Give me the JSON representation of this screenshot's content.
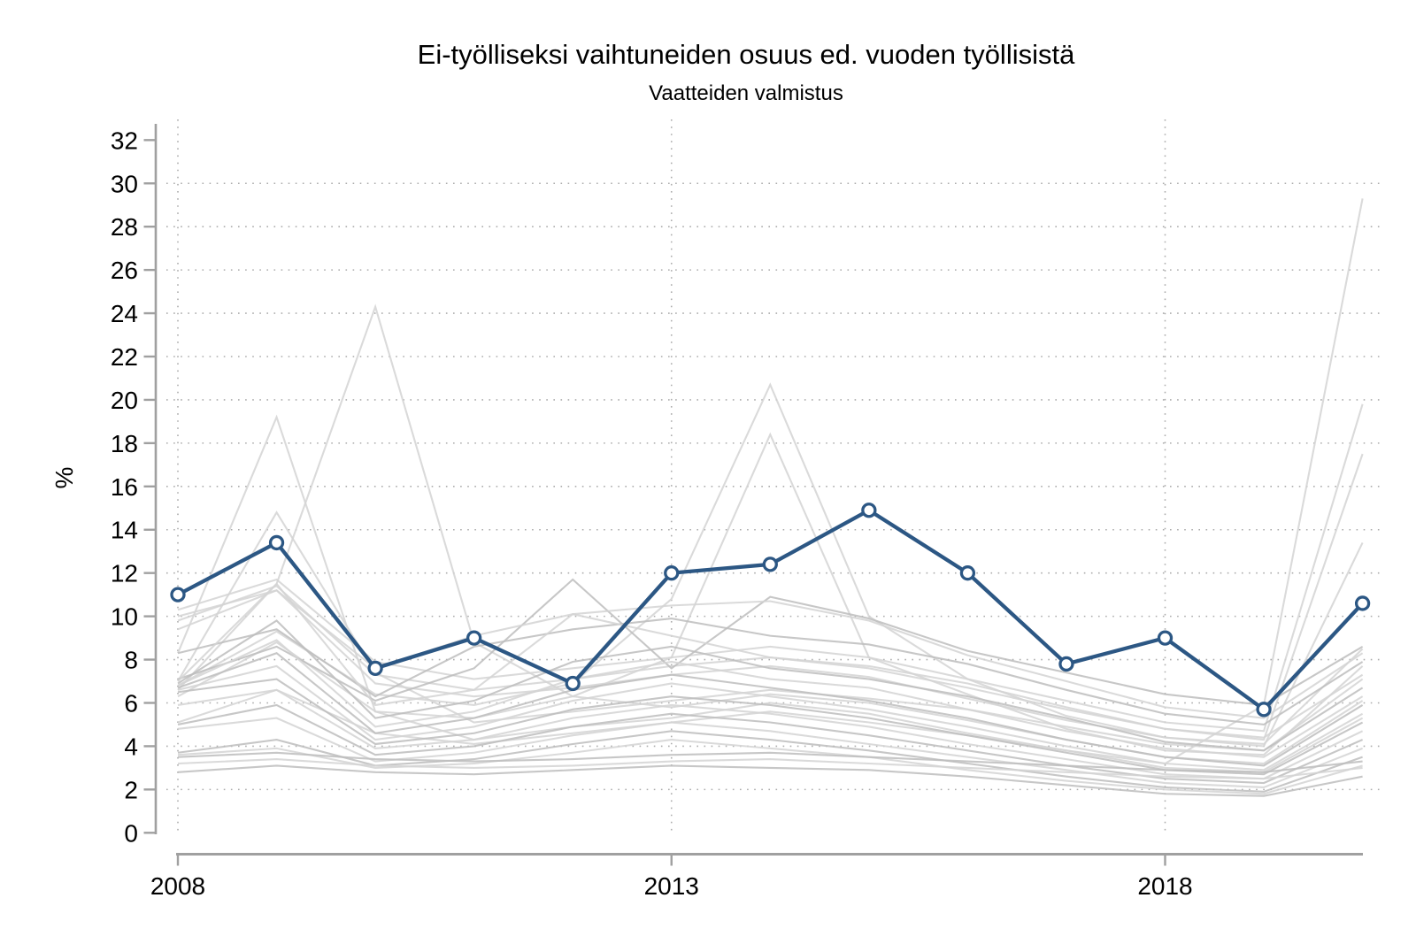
{
  "chart": {
    "title": "Ei-työlliseksi vaihtuneiden osuus ed. vuoden työllisistä",
    "subtitle": "Vaatteiden valmistus",
    "ylabel": "%"
  },
  "chart_data": {
    "type": "line",
    "title": "Ei-työlliseksi vaihtuneiden osuus ed. vuoden työllisistä",
    "subtitle": "Vaatteiden valmistus",
    "xlabel": "",
    "ylabel": "%",
    "ylim": [
      0,
      32
    ],
    "xlim": [
      2008,
      2020
    ],
    "grid": "dotted horizontal lines at 2..30, dotted vertical lines at labeled years",
    "legend_position": "none",
    "years": [
      2008,
      2009,
      2010,
      2011,
      2012,
      2013,
      2014,
      2015,
      2016,
      2017,
      2018,
      2019,
      2020
    ],
    "y_ticks": [
      0,
      2,
      4,
      6,
      8,
      10,
      12,
      14,
      16,
      18,
      20,
      22,
      24,
      26,
      28,
      30,
      32
    ],
    "x_ticks": [
      {
        "year": 2008,
        "label": "2008"
      },
      {
        "year": 2013,
        "label": "2013"
      },
      {
        "year": 2018,
        "label": "2018"
      }
    ],
    "colors": {
      "main_line": "#2C5784",
      "marker_fill": "#ffffff",
      "gray_light": "#D3D3D3",
      "gray_mid": "#BDBDBD",
      "axis": "#A0A0A0",
      "grid": "#ACACAC",
      "text": "#000000"
    },
    "main_series": {
      "name": "Vaatteiden valmistus",
      "marker": "open-circle",
      "values": [
        11.0,
        13.4,
        7.6,
        9.0,
        6.9,
        12.0,
        12.4,
        14.9,
        12.0,
        7.8,
        9.0,
        5.7,
        10.6
      ]
    },
    "background_series_note": "unlabeled comparison industries, values estimated from pixels",
    "background_series": [
      {
        "shade": "light",
        "values": [
          6.6,
          11.5,
          24.3,
          8.8,
          6.3,
          5.8,
          6.4,
          6.0,
          5.2,
          4.3,
          3.5,
          3.2,
          6.1
        ]
      },
      {
        "shade": "light",
        "values": [
          8.3,
          19.2,
          5.6,
          4.3,
          4.9,
          5.3,
          6.0,
          5.5,
          4.6,
          3.8,
          3.0,
          2.8,
          5.3
        ]
      },
      {
        "shade": "light",
        "values": [
          7.0,
          14.8,
          7.4,
          5.1,
          5.6,
          6.1,
          6.6,
          6.2,
          5.7,
          4.9,
          4.1,
          3.8,
          7.1
        ]
      },
      {
        "shade": "light",
        "values": [
          6.8,
          9.3,
          6.4,
          5.9,
          6.9,
          10.8,
          20.7,
          10.0,
          7.1,
          5.4,
          4.4,
          4.1,
          8.5
        ]
      },
      {
        "shade": "light",
        "values": [
          6.3,
          8.8,
          5.6,
          5.3,
          6.3,
          8.1,
          18.4,
          8.1,
          6.4,
          4.8,
          3.8,
          3.6,
          7.7
        ]
      },
      {
        "shade": "light",
        "values": [
          5.1,
          6.6,
          4.6,
          4.1,
          4.6,
          5.1,
          5.6,
          5.1,
          4.5,
          3.8,
          3.2,
          5.9,
          29.3
        ]
      },
      {
        "shade": "light",
        "values": [
          10.3,
          11.7,
          7.9,
          7.1,
          7.6,
          8.1,
          8.6,
          8.1,
          7.1,
          6.1,
          5.1,
          4.7,
          19.8
        ]
      },
      {
        "shade": "light",
        "values": [
          9.8,
          11.4,
          7.3,
          6.6,
          7.1,
          7.7,
          8.1,
          7.6,
          6.7,
          5.7,
          4.8,
          4.3,
          17.5
        ]
      },
      {
        "shade": "light",
        "values": [
          9.4,
          11.2,
          6.9,
          6.3,
          6.7,
          7.3,
          7.7,
          7.2,
          6.2,
          5.2,
          4.4,
          4.0,
          13.4
        ]
      },
      {
        "shade": "mid",
        "values": [
          7.1,
          8.6,
          6.1,
          7.6,
          11.7,
          7.6,
          10.9,
          9.9,
          8.4,
          7.4,
          6.4,
          5.9,
          8.6
        ]
      },
      {
        "shade": "light",
        "values": [
          10.0,
          11.2,
          7.6,
          9.1,
          10.1,
          10.5,
          10.7,
          9.8,
          8.2,
          7.0,
          5.8,
          5.3,
          8.3
        ]
      },
      {
        "shade": "mid",
        "values": [
          8.3,
          9.4,
          6.3,
          8.6,
          9.4,
          9.9,
          9.1,
          8.7,
          7.8,
          6.6,
          5.5,
          5.0,
          7.9
        ]
      },
      {
        "shade": "light",
        "values": [
          7.0,
          11.5,
          5.9,
          6.6,
          10.1,
          9.1,
          8.1,
          7.7,
          6.9,
          5.8,
          4.8,
          4.4,
          7.3
        ]
      },
      {
        "shade": "mid",
        "values": [
          6.9,
          9.8,
          5.3,
          6.1,
          7.9,
          8.6,
          7.6,
          7.1,
          6.3,
          5.3,
          4.2,
          3.8,
          6.7
        ]
      },
      {
        "shade": "light",
        "values": [
          6.8,
          8.9,
          4.9,
          5.6,
          7.1,
          7.9,
          7.1,
          6.7,
          5.7,
          4.7,
          3.9,
          3.5,
          6.3
        ]
      },
      {
        "shade": "mid",
        "values": [
          6.7,
          8.3,
          4.6,
          5.3,
          6.6,
          7.3,
          6.7,
          6.1,
          5.3,
          4.3,
          3.5,
          3.1,
          5.9
        ]
      },
      {
        "shade": "light",
        "values": [
          6.6,
          7.7,
          4.3,
          4.9,
          6.1,
          6.9,
          6.3,
          5.7,
          4.9,
          4.0,
          3.2,
          2.9,
          5.5
        ]
      },
      {
        "shade": "mid",
        "values": [
          6.5,
          7.1,
          4.1,
          4.6,
          5.7,
          6.3,
          5.9,
          5.3,
          4.5,
          3.7,
          2.9,
          2.7,
          5.1
        ]
      },
      {
        "shade": "light",
        "values": [
          5.9,
          6.6,
          3.9,
          4.3,
          5.3,
          5.9,
          5.5,
          4.9,
          4.1,
          3.4,
          2.7,
          2.5,
          4.7
        ]
      },
      {
        "shade": "mid",
        "values": [
          5.0,
          5.9,
          3.6,
          4.0,
          4.9,
          5.5,
          5.1,
          4.5,
          3.8,
          3.1,
          2.5,
          2.3,
          4.3
        ]
      },
      {
        "shade": "light",
        "values": [
          4.8,
          5.3,
          3.3,
          3.7,
          4.5,
          5.1,
          4.7,
          4.1,
          3.5,
          2.9,
          2.3,
          2.1,
          3.9
        ]
      },
      {
        "shade": "mid",
        "values": [
          3.7,
          4.3,
          3.1,
          3.4,
          4.1,
          4.7,
          4.3,
          3.8,
          3.2,
          2.6,
          2.1,
          1.9,
          3.5
        ]
      },
      {
        "shade": "light",
        "values": [
          3.6,
          3.9,
          3.0,
          3.2,
          3.7,
          4.3,
          3.9,
          3.5,
          2.9,
          2.4,
          2.0,
          1.8,
          3.1
        ]
      },
      {
        "shade": "mid",
        "values": [
          3.5,
          3.7,
          3.4,
          3.3,
          3.4,
          3.6,
          3.7,
          3.5,
          3.3,
          3.1,
          2.9,
          2.8,
          3.3
        ]
      },
      {
        "shade": "light",
        "values": [
          3.2,
          3.4,
          3.1,
          3.0,
          3.1,
          3.3,
          3.4,
          3.2,
          3.0,
          2.8,
          2.6,
          2.5,
          3.0
        ]
      },
      {
        "shade": "mid",
        "values": [
          2.8,
          3.1,
          2.8,
          2.7,
          2.9,
          3.1,
          3.0,
          2.9,
          2.6,
          2.2,
          1.8,
          1.7,
          2.6
        ]
      }
    ]
  }
}
